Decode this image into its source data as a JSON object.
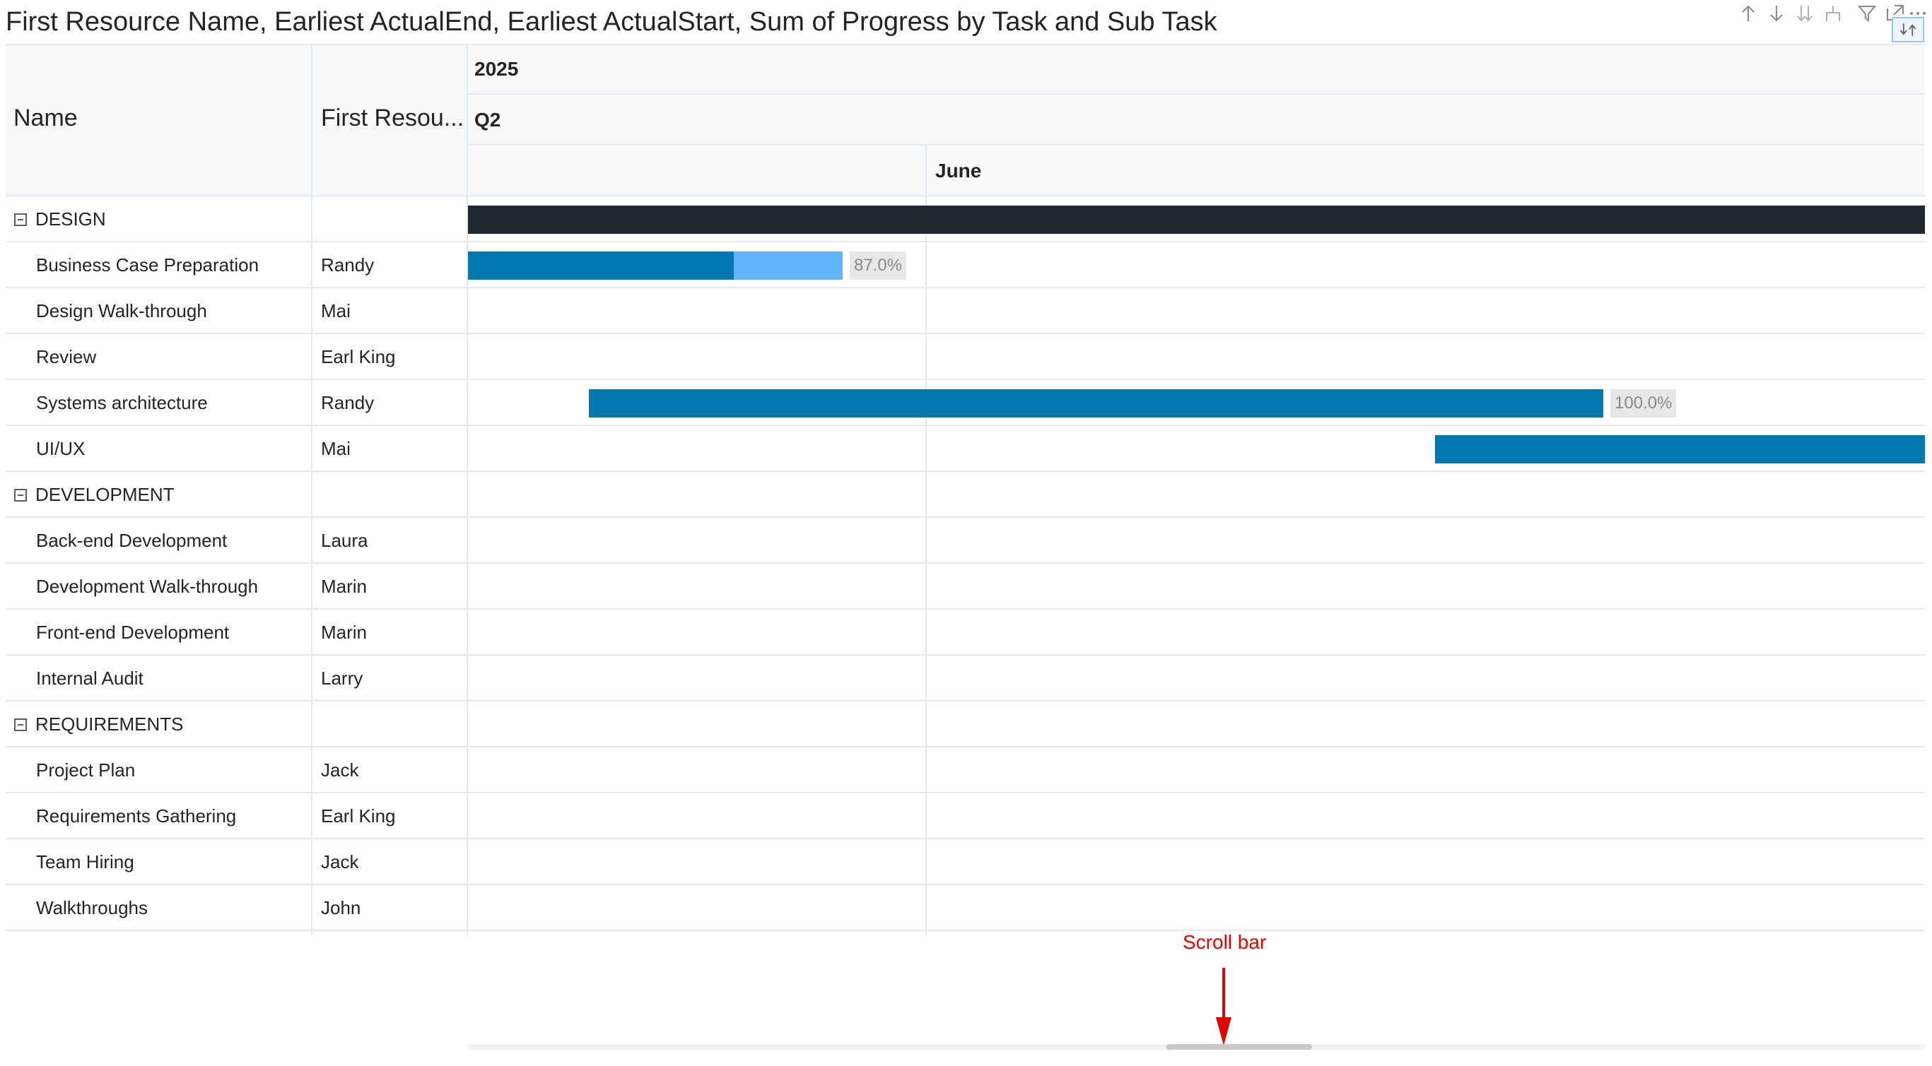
{
  "title": "First Resource Name, Earliest ActualEnd, Earliest ActualStart, Sum of Progress by Task and Sub Task",
  "toolbar": {
    "icons": [
      "arrow-up-icon",
      "arrow-down-icon",
      "double-arrow-down-icon",
      "expand-hierarchy-icon",
      "filter-icon",
      "focus-mode-icon",
      "more-options-icon",
      "drill-icon"
    ]
  },
  "columns": {
    "name": "Name",
    "resource": "First Resou..."
  },
  "timeline": {
    "year": "2025",
    "quarter": "Q2",
    "month": "June"
  },
  "colors": {
    "group_bar": "#1e2831",
    "progress": "#0078ae",
    "remaining": "#61b4f5",
    "annotation": "#e00000"
  },
  "rows": [
    {
      "name": "DESIGN",
      "resource": "",
      "group": true
    },
    {
      "name": "Business Case Preparation",
      "resource": "Randy",
      "group": false,
      "progress_label": "87.0%",
      "progress": 0.87
    },
    {
      "name": "Design Walk-through",
      "resource": "Mai",
      "group": false
    },
    {
      "name": "Review",
      "resource": "Earl King",
      "group": false
    },
    {
      "name": "Systems architecture",
      "resource": "Randy",
      "group": false,
      "progress_label": "100.0%",
      "progress": 1.0
    },
    {
      "name": "UI/UX",
      "resource": "Mai",
      "group": false
    },
    {
      "name": "DEVELOPMENT",
      "resource": "",
      "group": true
    },
    {
      "name": "Back-end Development",
      "resource": "Laura",
      "group": false
    },
    {
      "name": "Development Walk-through",
      "resource": "Marin",
      "group": false
    },
    {
      "name": "Front-end Development",
      "resource": "Marin",
      "group": false
    },
    {
      "name": "Internal Audit",
      "resource": "Larry",
      "group": false
    },
    {
      "name": "REQUIREMENTS",
      "resource": "",
      "group": true
    },
    {
      "name": "Project Plan",
      "resource": "Jack",
      "group": false
    },
    {
      "name": "Requirements Gathering",
      "resource": "Earl King",
      "group": false
    },
    {
      "name": "Team Hiring",
      "resource": " Jack",
      "group": false
    },
    {
      "name": "Walkthroughs",
      "resource": "John",
      "group": false
    }
  ],
  "annotation": {
    "label": "Scroll bar"
  }
}
